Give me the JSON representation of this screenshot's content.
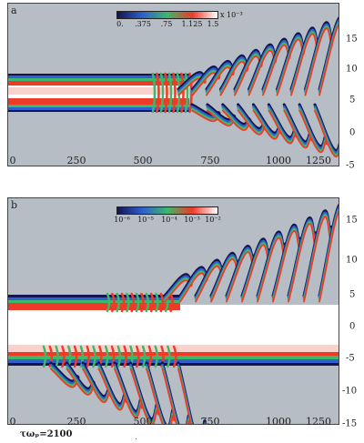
{
  "panel_a": {
    "label": "a",
    "colorbar": {
      "tick_labels": [
        "0.",
        ".375",
        ".75",
        "1.125",
        "1.5"
      ],
      "unit": "x 10⁻³",
      "colors": [
        "#14144e",
        "#2f5fd0",
        "#3bb86a",
        "#f03a28",
        "#ffffff"
      ]
    },
    "x_ticks": [
      "0",
      "250",
      "500",
      "750",
      "1000",
      "1250"
    ],
    "y_ticks": [
      "15",
      "10",
      "5",
      "0",
      "-5"
    ]
  },
  "panel_b": {
    "label": "b",
    "colorbar": {
      "tick_labels": [
        "10⁻⁶",
        "10⁻⁵",
        "10⁻⁴",
        "10⁻³",
        "10⁻²"
      ],
      "colors": [
        "#14144e",
        "#2f5fd0",
        "#3bb86a",
        "#f03a28",
        "#ffffff"
      ]
    },
    "x_ticks": [
      "0",
      "250",
      "500",
      "750",
      "1000",
      "1250"
    ],
    "y_ticks": [
      "15",
      "10",
      "5",
      "0",
      "-5",
      "-10",
      "-15"
    ]
  },
  "footer": {
    "caption": "τωₚ=2100",
    "faint": "."
  },
  "colors": {
    "background": "#b7bdc4",
    "red": "#f03a28",
    "green": "#3bb86a",
    "blue": "#2f5fd0",
    "navy": "#14144e"
  }
}
